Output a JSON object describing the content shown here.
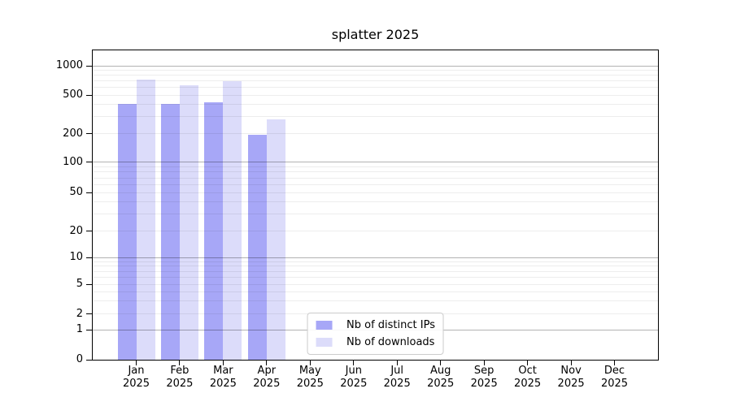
{
  "chart_data": {
    "type": "bar",
    "title": "splatter 2025",
    "x_year": "2025",
    "categories": [
      "Jan",
      "Feb",
      "Mar",
      "Apr",
      "May",
      "Jun",
      "Jul",
      "Aug",
      "Sep",
      "Oct",
      "Nov",
      "Dec"
    ],
    "series": [
      {
        "name": "Nb of distinct IPs",
        "color": "#a7a7f7",
        "values": [
          405,
          410,
          420,
          195,
          null,
          null,
          null,
          null,
          null,
          null,
          null,
          null
        ]
      },
      {
        "name": "Nb of downloads",
        "color": "#dcdcfa",
        "values": [
          720,
          630,
          695,
          280,
          null,
          null,
          null,
          null,
          null,
          null,
          null,
          null
        ]
      }
    ],
    "yticks": [
      0,
      1,
      2,
      5,
      10,
      20,
      50,
      100,
      200,
      500,
      1000
    ],
    "ylim": [
      0,
      1400
    ],
    "scale": "symlog-like",
    "grid": "horizontal, major and minor log gridlines drawn over bars",
    "legend_position": "lower center",
    "y_scale_anchors": [
      [
        0,
        0.0
      ],
      [
        1,
        0.097
      ],
      [
        2,
        0.148
      ],
      [
        5,
        0.243
      ],
      [
        10,
        0.33
      ],
      [
        20,
        0.415
      ],
      [
        50,
        0.54
      ],
      [
        100,
        0.638
      ],
      [
        200,
        0.731
      ],
      [
        500,
        0.855
      ],
      [
        1000,
        0.95
      ]
    ],
    "minor_grid_values": [
      2,
      3,
      4,
      5,
      6,
      7,
      8,
      9,
      20,
      30,
      40,
      50,
      60,
      70,
      80,
      90,
      200,
      300,
      400,
      500,
      600,
      700,
      800,
      900
    ],
    "major_grid_values": [
      1,
      10,
      100,
      1000
    ]
  },
  "colors": {
    "background": "#ffffff",
    "axis": "#000000",
    "bar_distinct_ips": "#a7a7f7",
    "bar_downloads": "#dcdcfa",
    "grid_major": "rgba(0,0,0,0.30)",
    "grid_minor": "rgba(0,0,0,0.07)",
    "legend_border": "#cccccc"
  }
}
